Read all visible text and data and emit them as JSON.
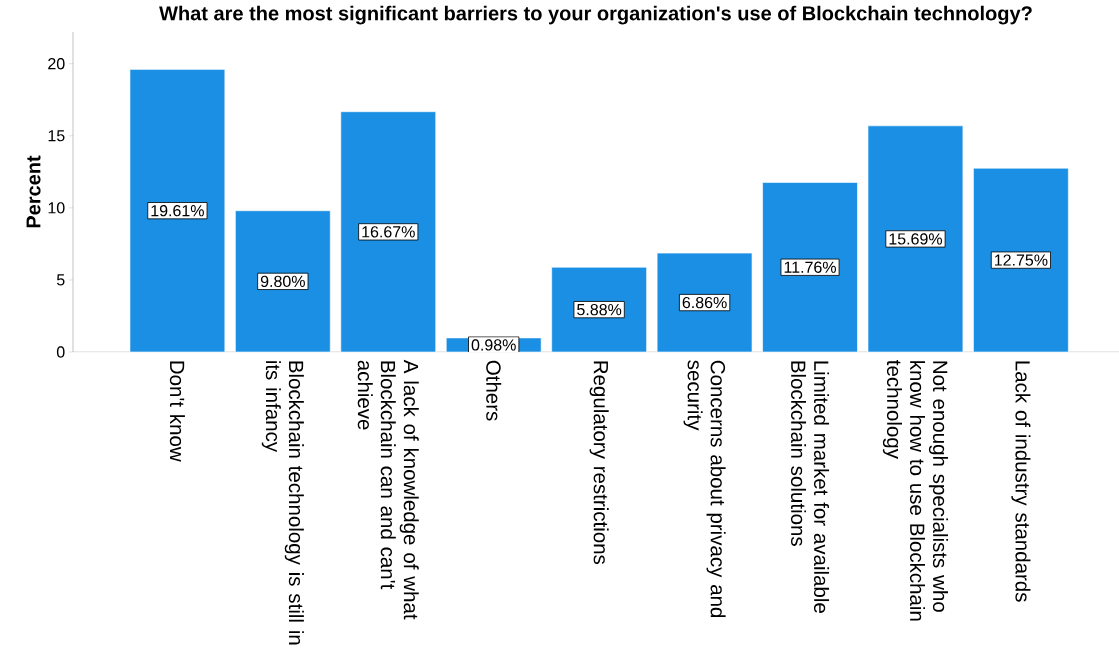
{
  "chart_data": {
    "type": "bar",
    "title": "What are the most significant barriers to your organization's use of Blockchain technology?",
    "ylabel": "Percent",
    "categories": [
      "Don't know",
      "Blockchain technology is still in its infancy",
      "A lack of knowledge of what Blockchain can and can't achieve",
      "Others",
      "Regulatory restrictions",
      "Concerns about privacy and security",
      "Limited market for available Blockchain solutions",
      "Not enough specialists who know how to use Blockchain technology",
      "Lack of industry standards"
    ],
    "values": [
      19.61,
      9.8,
      16.67,
      0.98,
      5.88,
      6.86,
      11.76,
      15.69,
      12.75
    ],
    "value_labels": [
      "19.61%",
      "9.80%",
      "16.67%",
      "0.98%",
      "5.88%",
      "6.86%",
      "11.76%",
      "15.69%",
      "12.75%"
    ],
    "color": "#1a8fe3",
    "ylim": [
      0,
      22.2
    ],
    "yticks": [
      0,
      5,
      10,
      15,
      20
    ],
    "grid": false
  }
}
